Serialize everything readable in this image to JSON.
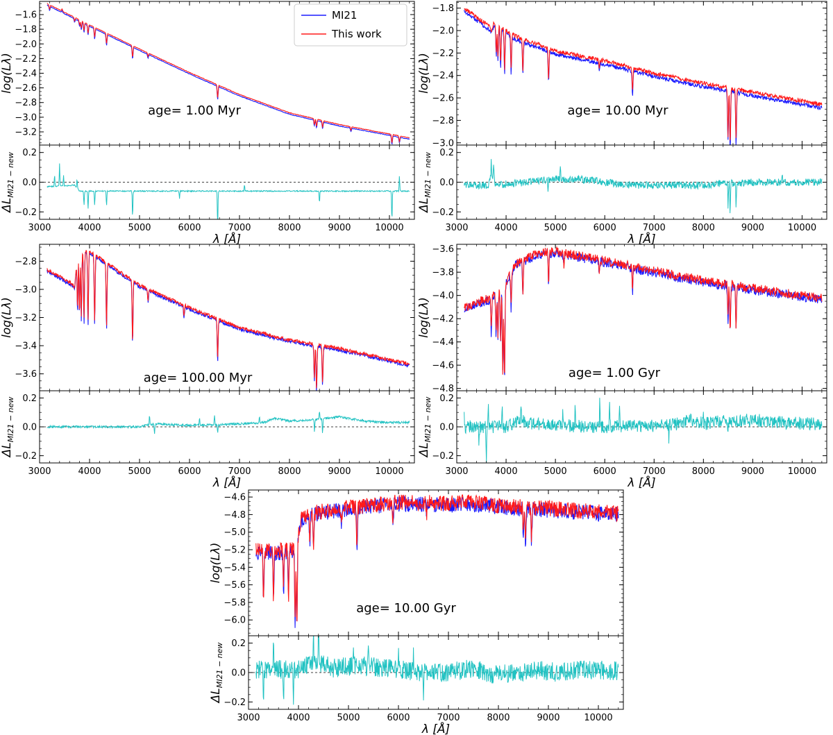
{
  "legend": {
    "entries": [
      {
        "label": "MI21",
        "color": "#1a1aff"
      },
      {
        "label": "This work",
        "color": "#ff1a1a"
      }
    ]
  },
  "labels": {
    "ylabel_top": "log(Lλ)",
    "ylabel_bottom": "ΔL",
    "ylabel_bottom_sub": "MI21 − new",
    "xlabel": "λ [Å]"
  },
  "chart_data": [
    {
      "type": "line",
      "age_label": "age= 1.00 Myr",
      "x_range": [
        3000,
        10500
      ],
      "xticks": [
        3000,
        4000,
        5000,
        6000,
        7000,
        8000,
        9000,
        10000
      ],
      "top": {
        "ylim": [
          -3.38,
          -1.42
        ],
        "yticks": [
          -3.2,
          -3.0,
          -2.8,
          -2.6,
          -2.4,
          -2.2,
          -2.0,
          -1.8,
          -1.6
        ],
        "curve": [
          [
            3150,
            -1.45
          ],
          [
            4000,
            -1.74
          ],
          [
            5000,
            -2.07
          ],
          [
            6000,
            -2.39
          ],
          [
            7000,
            -2.69
          ],
          [
            8000,
            -2.94
          ],
          [
            9000,
            -3.1
          ],
          [
            10400,
            -3.28
          ]
        ],
        "break": null,
        "noise": 0.004,
        "lines": [
          [
            3200,
            0.06
          ],
          [
            3450,
            -0.03
          ],
          [
            3700,
            0.05
          ],
          [
            3800,
            0.07
          ],
          [
            3835,
            0.1
          ],
          [
            3889,
            0.12
          ],
          [
            3970,
            0.13
          ],
          [
            4102,
            0.14
          ],
          [
            4340,
            0.15
          ],
          [
            4861,
            0.16
          ],
          [
            5170,
            0.05
          ],
          [
            6563,
            0.18
          ],
          [
            8498,
            0.08
          ],
          [
            8542,
            0.1
          ],
          [
            8662,
            0.09
          ],
          [
            9229,
            0.05
          ],
          [
            10050,
            0.12
          ],
          [
            10200,
            0.08
          ]
        ],
        "sep": 0.02
      },
      "bottom": {
        "ylim": [
          -0.25,
          0.25
        ],
        "yticks": [
          -0.2,
          0.0,
          0.2
        ],
        "base": [
          [
            3150,
            -0.03
          ],
          [
            3700,
            -0.02
          ],
          [
            3800,
            -0.06
          ],
          [
            10400,
            -0.06
          ]
        ],
        "noise": 0.004,
        "spikes": [
          [
            3300,
            0.08
          ],
          [
            3400,
            0.15
          ],
          [
            3480,
            0.07
          ],
          [
            3750,
            0.06
          ],
          [
            3889,
            -0.1
          ],
          [
            3970,
            -0.12
          ],
          [
            4102,
            -0.1
          ],
          [
            4340,
            -0.1
          ],
          [
            4861,
            -0.18
          ],
          [
            5800,
            -0.05
          ],
          [
            6563,
            -0.25
          ],
          [
            7100,
            0.04
          ],
          [
            8600,
            -0.08
          ],
          [
            10050,
            -0.2
          ],
          [
            10200,
            0.1
          ]
        ]
      }
    },
    {
      "type": "line",
      "age_label": "age= 10.00 Myr",
      "x_range": [
        3000,
        10500
      ],
      "xticks": [
        3000,
        4000,
        5000,
        6000,
        7000,
        8000,
        9000,
        10000
      ],
      "top": {
        "ylim": [
          -3.02,
          -1.74
        ],
        "yticks": [
          -3.0,
          -2.8,
          -2.6,
          -2.4,
          -2.2,
          -2.0,
          -1.8
        ],
        "curve": [
          [
            3150,
            -1.8
          ],
          [
            3650,
            -1.96
          ],
          [
            3700,
            -2.0
          ],
          [
            3750,
            -1.93
          ],
          [
            4200,
            -2.05
          ],
          [
            5000,
            -2.18
          ],
          [
            6000,
            -2.27
          ],
          [
            7000,
            -2.38
          ],
          [
            8000,
            -2.47
          ],
          [
            9000,
            -2.55
          ],
          [
            10400,
            -2.66
          ]
        ],
        "break": null,
        "noise": 0.018,
        "lines": [
          [
            3800,
            0.25
          ],
          [
            3835,
            0.3
          ],
          [
            3889,
            0.33
          ],
          [
            3970,
            0.36
          ],
          [
            4102,
            0.33
          ],
          [
            4340,
            0.3
          ],
          [
            4861,
            0.28
          ],
          [
            5890,
            0.07
          ],
          [
            6563,
            0.22
          ],
          [
            8498,
            0.45
          ],
          [
            8542,
            0.52
          ],
          [
            8662,
            0.47
          ]
        ],
        "sep": 0.03
      },
      "bottom": {
        "ylim": [
          -0.25,
          0.25
        ],
        "yticks": [
          -0.2,
          0.0,
          0.2
        ],
        "base": [
          [
            3150,
            -0.02
          ],
          [
            3650,
            -0.02
          ],
          [
            3700,
            0.05
          ],
          [
            3800,
            -0.02
          ],
          [
            5000,
            0.02
          ],
          [
            5500,
            0.02
          ],
          [
            6500,
            -0.02
          ],
          [
            8000,
            -0.02
          ],
          [
            9000,
            0.0
          ],
          [
            10400,
            0.0
          ]
        ],
        "noise": 0.025,
        "spikes": [
          [
            3700,
            0.1
          ],
          [
            3750,
            0.12
          ],
          [
            4850,
            -0.06
          ],
          [
            5100,
            0.07
          ],
          [
            8500,
            -0.15
          ],
          [
            8542,
            -0.2
          ],
          [
            8662,
            -0.16
          ],
          [
            9600,
            0.05
          ]
        ]
      }
    },
    {
      "type": "line",
      "age_label": "age= 100.00 Myr",
      "x_range": [
        3000,
        10500
      ],
      "xticks": [
        3000,
        4000,
        5000,
        6000,
        7000,
        8000,
        9000,
        10000
      ],
      "top": {
        "ylim": [
          -3.72,
          -2.68
        ],
        "yticks": [
          -3.6,
          -3.4,
          -3.2,
          -3.0,
          -2.8
        ],
        "curve": [
          [
            3150,
            -2.86
          ],
          [
            3650,
            -2.96
          ],
          [
            3700,
            -2.99
          ],
          [
            3760,
            -2.74
          ],
          [
            4000,
            -2.73
          ],
          [
            4500,
            -2.85
          ],
          [
            5000,
            -2.97
          ],
          [
            6000,
            -3.13
          ],
          [
            7000,
            -3.27
          ],
          [
            8000,
            -3.36
          ],
          [
            9000,
            -3.42
          ],
          [
            10400,
            -3.53
          ]
        ],
        "break": null,
        "noise": 0.012,
        "lines": [
          [
            3760,
            0.4
          ],
          [
            3798,
            0.44
          ],
          [
            3835,
            0.47
          ],
          [
            3889,
            0.5
          ],
          [
            3970,
            0.52
          ],
          [
            4102,
            0.49
          ],
          [
            4340,
            0.46
          ],
          [
            4861,
            0.45
          ],
          [
            5170,
            0.08
          ],
          [
            5890,
            0.08
          ],
          [
            6563,
            0.3
          ],
          [
            8498,
            0.25
          ],
          [
            8542,
            0.33
          ],
          [
            8662,
            0.28
          ]
        ],
        "sep": 0.012
      },
      "bottom": {
        "ylim": [
          -0.25,
          0.25
        ],
        "yticks": [
          -0.2,
          0.0,
          0.2
        ],
        "base": [
          [
            3150,
            0.0
          ],
          [
            5000,
            0.0
          ],
          [
            5300,
            0.02
          ],
          [
            6000,
            0.01
          ],
          [
            7000,
            0.02
          ],
          [
            7500,
            0.03
          ],
          [
            7700,
            0.06
          ],
          [
            8000,
            0.04
          ],
          [
            8500,
            0.05
          ],
          [
            9000,
            0.07
          ],
          [
            9500,
            0.04
          ],
          [
            10000,
            0.03
          ],
          [
            10400,
            0.03
          ]
        ],
        "noise": 0.008,
        "spikes": [
          [
            5200,
            0.07
          ],
          [
            5300,
            -0.07
          ],
          [
            6200,
            0.05
          ],
          [
            6500,
            0.06
          ],
          [
            6563,
            -0.06
          ],
          [
            7400,
            0.04
          ],
          [
            8500,
            -0.09
          ],
          [
            8600,
            0.06
          ],
          [
            8662,
            -0.1
          ]
        ]
      }
    },
    {
      "type": "line",
      "age_label": "age= 1.00 Gyr",
      "x_range": [
        3000,
        10500
      ],
      "xticks": [
        3000,
        4000,
        5000,
        6000,
        7000,
        8000,
        9000,
        10000
      ],
      "top": {
        "ylim": [
          -4.82,
          -3.56
        ],
        "yticks": [
          -4.8,
          -4.6,
          -4.4,
          -4.2,
          -4.0,
          -3.8,
          -3.6
        ],
        "curve": [
          [
            3150,
            -4.1
          ],
          [
            3700,
            -4.02
          ],
          [
            3950,
            -3.92
          ],
          [
            4200,
            -3.72
          ],
          [
            4700,
            -3.63
          ],
          [
            5000,
            -3.62
          ],
          [
            5500,
            -3.66
          ],
          [
            6000,
            -3.7
          ],
          [
            7000,
            -3.79
          ],
          [
            8000,
            -3.87
          ],
          [
            9000,
            -3.94
          ],
          [
            10400,
            -4.02
          ]
        ],
        "break": null,
        "noise": 0.04,
        "lines": [
          [
            3700,
            0.3
          ],
          [
            3798,
            0.35
          ],
          [
            3835,
            0.4
          ],
          [
            3889,
            0.45
          ],
          [
            3933,
            0.75
          ],
          [
            3968,
            0.85
          ],
          [
            4102,
            0.3
          ],
          [
            4340,
            0.32
          ],
          [
            4861,
            0.28
          ],
          [
            5170,
            0.1
          ],
          [
            5890,
            0.1
          ],
          [
            6563,
            0.2
          ],
          [
            8498,
            0.3
          ],
          [
            8542,
            0.4
          ],
          [
            8662,
            0.35
          ]
        ],
        "sep": 0.015
      },
      "bottom": {
        "ylim": [
          -0.25,
          0.25
        ],
        "yticks": [
          -0.2,
          0.0,
          0.2
        ],
        "base": [
          [
            3150,
            0.0
          ],
          [
            4000,
            0.0
          ],
          [
            4300,
            0.05
          ],
          [
            4500,
            0.02
          ],
          [
            5000,
            0.01
          ],
          [
            6000,
            0.0
          ],
          [
            7000,
            0.01
          ],
          [
            7500,
            0.02
          ],
          [
            7800,
            0.05
          ],
          [
            8000,
            0.02
          ],
          [
            8400,
            0.04
          ],
          [
            9000,
            0.05
          ],
          [
            9500,
            0.03
          ],
          [
            10400,
            0.02
          ]
        ],
        "noise": 0.045,
        "spikes": [
          [
            3150,
            0.13
          ],
          [
            3450,
            -0.16
          ],
          [
            3600,
            -0.24
          ],
          [
            3640,
            0.13
          ],
          [
            3920,
            0.16
          ],
          [
            4300,
            0.14
          ],
          [
            5150,
            0.1
          ],
          [
            5400,
            0.12
          ],
          [
            5900,
            0.18
          ],
          [
            6100,
            0.17
          ],
          [
            6300,
            0.16
          ],
          [
            7300,
            -0.12
          ],
          [
            8000,
            0.08
          ],
          [
            8500,
            -0.1
          ]
        ]
      }
    },
    {
      "type": "line",
      "age_label": "age= 10.00 Gyr",
      "x_range": [
        3000,
        10500
      ],
      "xticks": [
        3000,
        4000,
        5000,
        6000,
        7000,
        8000,
        9000,
        10000
      ],
      "top": {
        "ylim": [
          -6.18,
          -4.52
        ],
        "yticks": [
          -6.0,
          -5.8,
          -5.6,
          -5.4,
          -5.2,
          -5.0,
          -4.8,
          -4.6
        ],
        "curve": [
          [
            3150,
            -5.2
          ],
          [
            3500,
            -5.22
          ],
          [
            3800,
            -5.2
          ],
          [
            3950,
            -5.18
          ],
          [
            4050,
            -4.85
          ],
          [
            4300,
            -4.78
          ],
          [
            5000,
            -4.72
          ],
          [
            6000,
            -4.66
          ],
          [
            7000,
            -4.67
          ],
          [
            7500,
            -4.66
          ],
          [
            8000,
            -4.7
          ],
          [
            9000,
            -4.73
          ],
          [
            10400,
            -4.79
          ]
        ],
        "break": null,
        "noise": 0.09,
        "lines": [
          [
            3300,
            0.6
          ],
          [
            3500,
            0.55
          ],
          [
            3700,
            0.5
          ],
          [
            3800,
            0.55
          ],
          [
            3933,
            0.9
          ],
          [
            3968,
            0.98
          ],
          [
            4227,
            0.3
          ],
          [
            4300,
            0.4
          ],
          [
            4861,
            0.2
          ],
          [
            5170,
            0.5
          ],
          [
            5890,
            0.25
          ],
          [
            6563,
            0.12
          ],
          [
            8498,
            0.3
          ],
          [
            8542,
            0.45
          ],
          [
            8662,
            0.4
          ]
        ],
        "sep": 0.018
      },
      "bottom": {
        "ylim": [
          -0.25,
          0.25
        ],
        "yticks": [
          -0.2,
          0.0,
          0.2
        ],
        "base": [
          [
            3150,
            0.02
          ],
          [
            4000,
            0.02
          ],
          [
            4300,
            0.08
          ],
          [
            4700,
            0.03
          ],
          [
            5200,
            0.05
          ],
          [
            6000,
            0.02
          ],
          [
            6500,
            0.0
          ],
          [
            7000,
            0.0
          ],
          [
            7500,
            0.03
          ],
          [
            7800,
            -0.01
          ],
          [
            8200,
            -0.01
          ],
          [
            8700,
            0.02
          ],
          [
            9200,
            0.0
          ],
          [
            9800,
            0.02
          ],
          [
            10400,
            0.01
          ]
        ],
        "noise": 0.065,
        "spikes": [
          [
            3300,
            -0.24
          ],
          [
            3500,
            0.2
          ],
          [
            3700,
            -0.24
          ],
          [
            3900,
            -0.24
          ],
          [
            4300,
            0.24
          ],
          [
            4400,
            0.22
          ],
          [
            5100,
            0.16
          ],
          [
            5400,
            0.16
          ],
          [
            6000,
            0.11
          ],
          [
            6300,
            0.18
          ],
          [
            6500,
            -0.2
          ]
        ]
      }
    }
  ]
}
